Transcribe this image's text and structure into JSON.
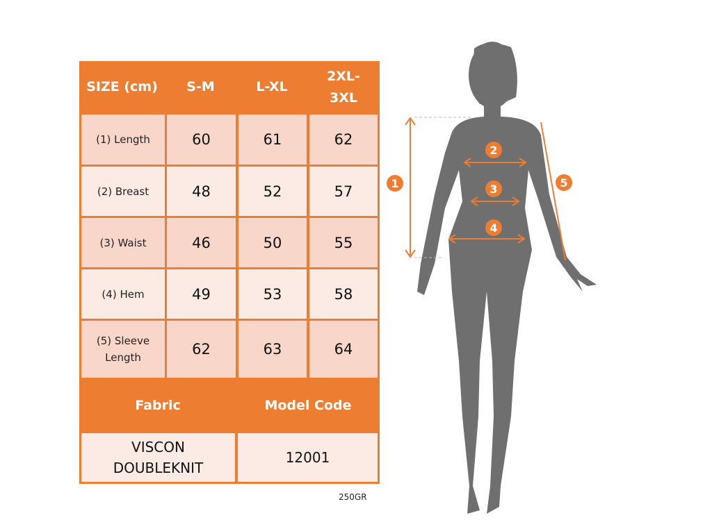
{
  "table": {
    "header": [
      "SIZE (cm)",
      "S-M",
      "L-XL",
      "2XL-3XL"
    ],
    "rows": [
      {
        "label": "(1) Length",
        "values": [
          "60",
          "61",
          "62"
        ]
      },
      {
        "label": "(2) Breast",
        "values": [
          "48",
          "52",
          "57"
        ]
      },
      {
        "label": "(3) Waist",
        "values": [
          "46",
          "50",
          "55"
        ]
      },
      {
        "label": "(4) Hem",
        "values": [
          "49",
          "53",
          "58"
        ]
      },
      {
        "label": "(5) Sleeve Length",
        "values": [
          "62",
          "63",
          "64"
        ]
      }
    ],
    "fabric_header": "Fabric",
    "model_code_header": "Model Code",
    "fabric": "VISCON DOUBLEKNIT",
    "model_code": "12001"
  },
  "footnote": "250GR",
  "figure": {
    "markers": [
      "1",
      "2",
      "3",
      "4",
      "5"
    ],
    "silhouette_color": "#6f6f6f",
    "accent_color": "#ed7d31"
  }
}
